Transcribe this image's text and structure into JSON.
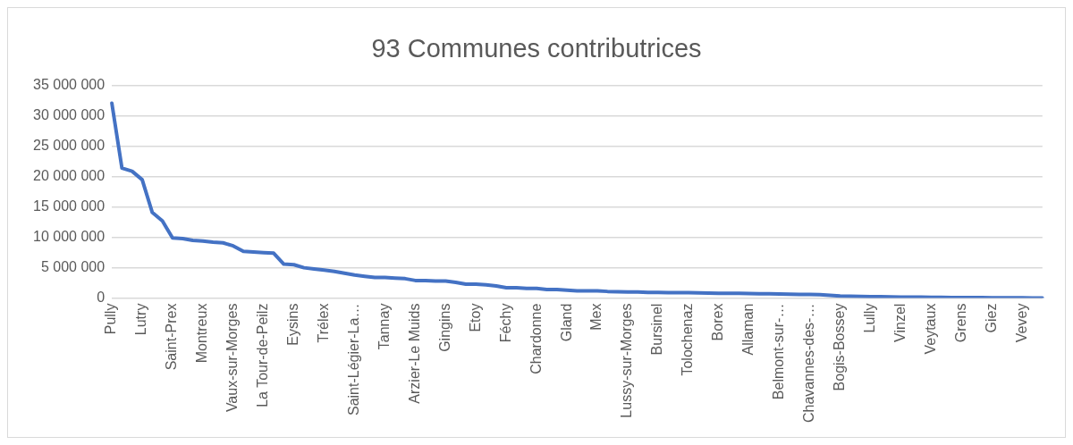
{
  "chart_data": {
    "type": "line",
    "title": "93 Communes contributrices",
    "categories": [
      "Pully",
      null,
      null,
      "Lutry",
      null,
      null,
      "Saint-Prex",
      null,
      null,
      "Montreux",
      null,
      null,
      "Vaux-sur-Morges",
      null,
      null,
      "La Tour-de-Peilz",
      null,
      null,
      "Eysins",
      null,
      null,
      "Trélex",
      null,
      null,
      "Saint-Légier-La…",
      null,
      null,
      "Tannay",
      null,
      null,
      "Arzier-Le Muids",
      null,
      null,
      "Gingins",
      null,
      null,
      "Etoy",
      null,
      null,
      "Féchy",
      null,
      null,
      "Chardonne",
      null,
      null,
      "Gland",
      null,
      null,
      "Mex",
      null,
      null,
      "Lussy-sur-Morges",
      null,
      null,
      "Bursinel",
      null,
      null,
      "Tolochenaz",
      null,
      null,
      "Borex",
      null,
      null,
      "Allaman",
      null,
      null,
      "Belmont-sur-…",
      null,
      null,
      "Chavannes-des-…",
      null,
      null,
      "Bogis-Bossey",
      null,
      null,
      "Lully",
      null,
      null,
      "Vinzel",
      null,
      null,
      "Veytaux",
      null,
      null,
      "Grens",
      null,
      null,
      "Giez",
      null,
      null,
      "Vevey",
      null,
      null
    ],
    "series": [
      {
        "color": "#4472c4",
        "values": [
          32100000,
          21400000,
          20900000,
          19500000,
          14100000,
          12700000,
          9900000,
          9800000,
          9500000,
          9400000,
          9200000,
          9100000,
          8600000,
          7700000,
          7600000,
          7500000,
          7400000,
          5600000,
          5500000,
          5000000,
          4800000,
          4600000,
          4400000,
          4100000,
          3800000,
          3600000,
          3400000,
          3400000,
          3300000,
          3200000,
          2900000,
          2900000,
          2800000,
          2800000,
          2600000,
          2300000,
          2300000,
          2200000,
          2000000,
          1700000,
          1700000,
          1600000,
          1600000,
          1400000,
          1400000,
          1300000,
          1200000,
          1200000,
          1200000,
          1100000,
          1050000,
          1000000,
          1000000,
          950000,
          950000,
          900000,
          900000,
          880000,
          850000,
          820000,
          800000,
          800000,
          780000,
          750000,
          720000,
          700000,
          680000,
          650000,
          620000,
          600000,
          550000,
          450000,
          350000,
          300000,
          280000,
          250000,
          220000,
          200000,
          180000,
          160000,
          150000,
          140000,
          120000,
          100000,
          100000,
          90000,
          80000,
          70000,
          60000,
          50000,
          40000,
          30000,
          20000
        ]
      }
    ],
    "ylim": [
      0,
      35000000
    ],
    "yticks": [
      {
        "value": 0,
        "label": "0"
      },
      {
        "value": 5000000,
        "label": "5 000 000"
      },
      {
        "value": 10000000,
        "label": "10 000 000"
      },
      {
        "value": 15000000,
        "label": "15 000 000"
      },
      {
        "value": 20000000,
        "label": "20 000 000"
      },
      {
        "value": 25000000,
        "label": "25 000 000"
      },
      {
        "value": 30000000,
        "label": "30 000 000"
      },
      {
        "value": 35000000,
        "label": "35 000 000"
      }
    ],
    "grid": "y",
    "marker": "none",
    "line_style": "solid",
    "legend": false
  }
}
